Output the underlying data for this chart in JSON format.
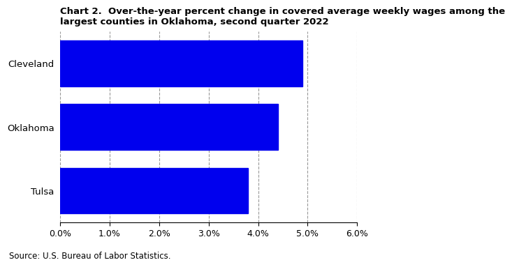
{
  "title": "Chart 2.  Over-the-year percent change in covered average weekly wages among the\nlargest counties in Oklahoma, second quarter 2022",
  "categories": [
    "Tulsa",
    "Oklahoma",
    "Cleveland"
  ],
  "values": [
    0.038,
    0.044,
    0.049
  ],
  "bar_color": "#0000EE",
  "xlim": [
    0,
    0.06
  ],
  "xticks": [
    0.0,
    0.01,
    0.02,
    0.03,
    0.04,
    0.05,
    0.06
  ],
  "source_text": "Source: U.S. Bureau of Labor Statistics.",
  "title_fontsize": 9.5,
  "label_fontsize": 9.5,
  "tick_fontsize": 9,
  "source_fontsize": 8.5,
  "bar_height": 0.72
}
